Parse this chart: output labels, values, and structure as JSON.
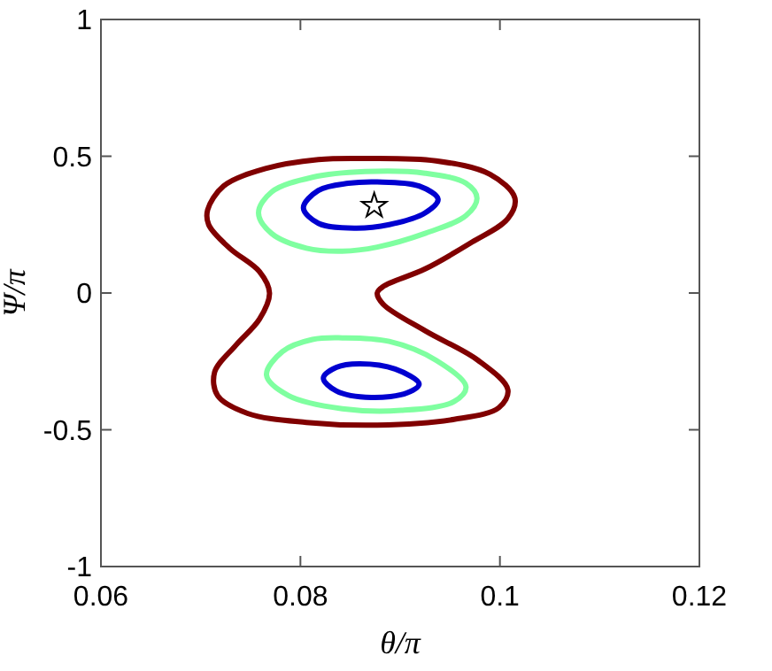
{
  "chart_data": {
    "type": "scatter",
    "xlabel": "θ/π",
    "ylabel": "Ψ/π",
    "xlim": [
      0.06,
      0.12
    ],
    "ylim": [
      -1,
      1
    ],
    "xticks": [
      0.06,
      0.08,
      0.1,
      0.12
    ],
    "yticks": [
      -1,
      -0.5,
      0,
      0.5,
      1
    ],
    "grid": false,
    "marker": "star",
    "series": [
      {
        "color": "#000000",
        "x": [
          0.0874
        ],
        "values": [
          0.319
        ]
      }
    ]
  }
}
